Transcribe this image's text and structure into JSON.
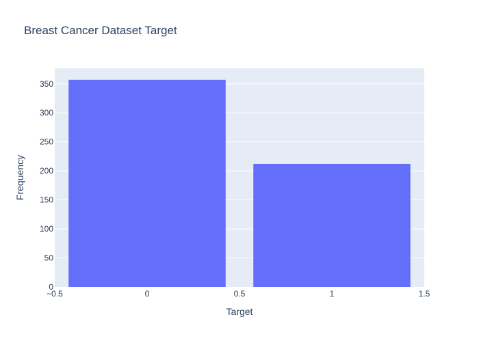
{
  "chart_data": {
    "type": "bar",
    "title": "Breast Cancer Dataset Target",
    "xlabel": "Target",
    "ylabel": "Frequency",
    "categories": [
      0,
      1
    ],
    "values": [
      357,
      212
    ],
    "xlim": [
      -0.5,
      1.5
    ],
    "ylim": [
      0,
      376.8
    ],
    "x_ticks": [
      -0.5,
      0,
      0.5,
      1,
      1.5
    ],
    "x_tick_labels": [
      "−0.5",
      "0",
      "0.5",
      "1",
      "1.5"
    ],
    "y_ticks": [
      0,
      50,
      100,
      150,
      200,
      250,
      300,
      350
    ],
    "y_tick_labels": [
      "0",
      "50",
      "100",
      "150",
      "200",
      "250",
      "300",
      "350"
    ],
    "bar_color": "#636efa",
    "plot_background": "#e5ecf6",
    "grid": true,
    "legend": "none"
  }
}
